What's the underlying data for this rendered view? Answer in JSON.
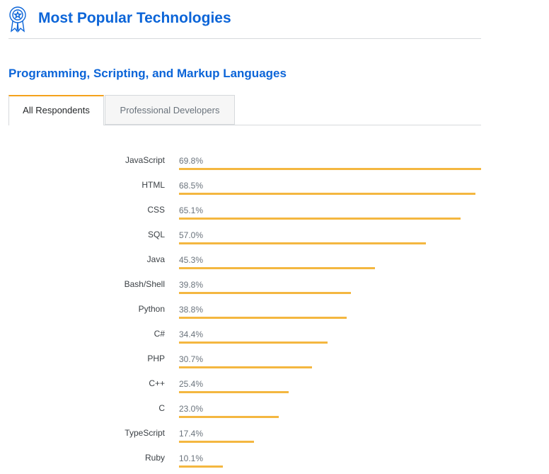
{
  "header": {
    "title": "Most Popular Technologies",
    "icon": "award-ribbon-icon",
    "accent_color": "#0c65d8"
  },
  "section": {
    "title": "Programming, Scripting, and Markup Languages"
  },
  "tabs": [
    {
      "label": "All Respondents",
      "selected": true
    },
    {
      "label": "Professional Developers",
      "selected": false
    }
  ],
  "chart_data": {
    "type": "bar",
    "orientation": "horizontal",
    "bar_color": "#f4b740",
    "categories": [
      "JavaScript",
      "HTML",
      "CSS",
      "SQL",
      "Java",
      "Bash/Shell",
      "Python",
      "C#",
      "PHP",
      "C++",
      "C",
      "TypeScript",
      "Ruby"
    ],
    "values": [
      69.8,
      68.5,
      65.1,
      57.0,
      45.3,
      39.8,
      38.8,
      34.4,
      30.7,
      25.4,
      23.0,
      17.4,
      10.1
    ],
    "value_labels": [
      "69.8%",
      "68.5%",
      "65.1%",
      "57.0%",
      "45.3%",
      "39.8%",
      "38.8%",
      "34.4%",
      "30.7%",
      "25.4%",
      "23.0%",
      "17.4%",
      "10.1%"
    ],
    "unit": "%",
    "xlim": [
      0,
      69.8
    ]
  }
}
